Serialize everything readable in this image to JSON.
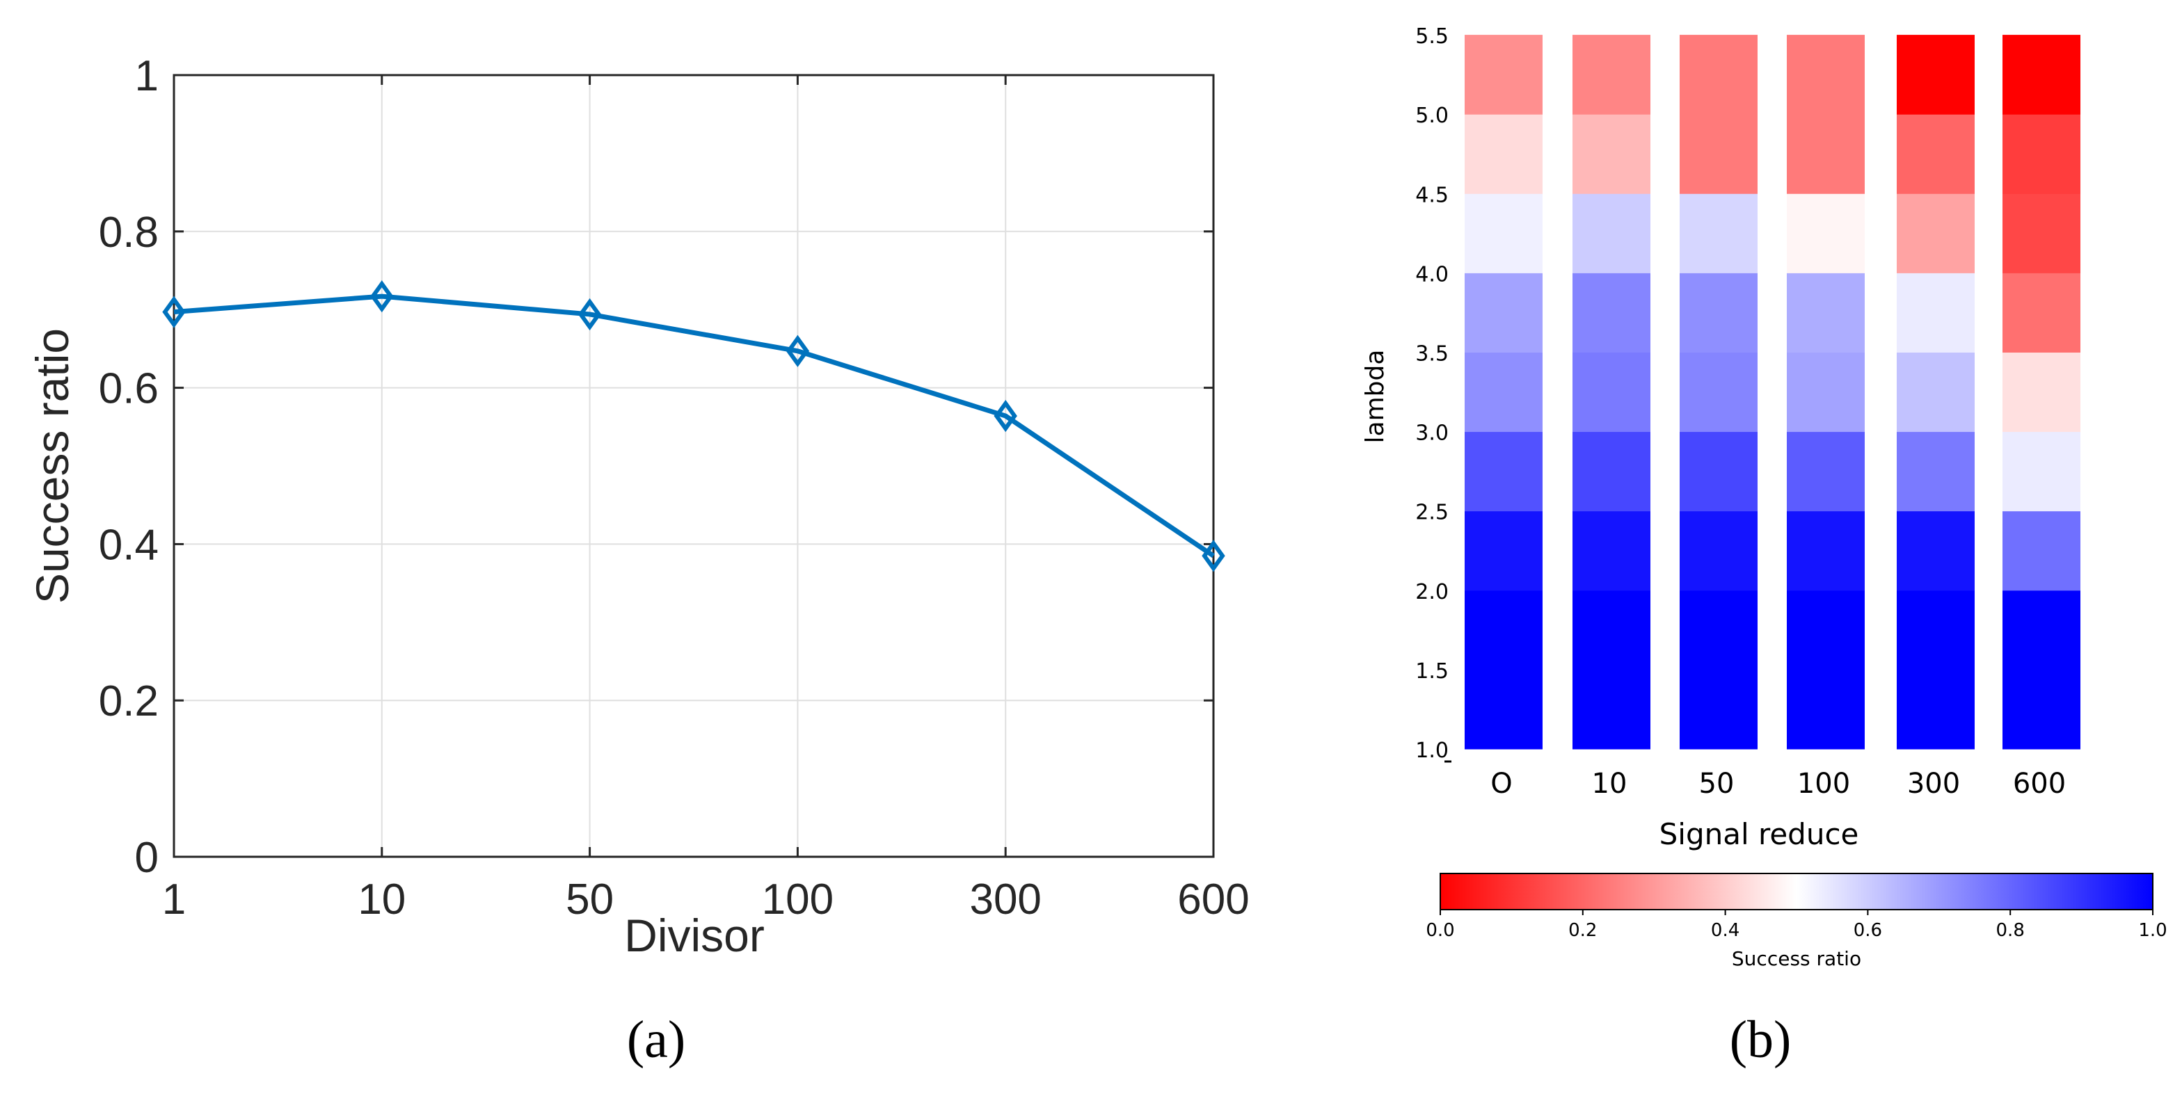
{
  "panel_a": {
    "caption": "(a)",
    "chart_data": {
      "type": "line",
      "categories": [
        "1",
        "10",
        "50",
        "100",
        "300",
        "600"
      ],
      "series": [
        {
          "values": [
            0.697,
            0.717,
            0.694,
            0.647,
            0.564,
            0.385
          ]
        }
      ],
      "title": "",
      "xlabel": "Divisor",
      "ylabel": "Success ratio",
      "ylim": [
        0,
        1
      ],
      "yticks": [
        "0",
        "0.2",
        "0.4",
        "0.6",
        "0.8",
        "1"
      ],
      "grid": true,
      "marker": "diamond",
      "line_color": "#0072BD"
    }
  },
  "panel_b": {
    "caption": "(b)",
    "chart_data": {
      "type": "heatmap",
      "title": "",
      "xlabel": "Signal reduce",
      "ylabel": "lambda",
      "x_categories": [
        "O",
        "10",
        "50",
        "100",
        "300",
        "600"
      ],
      "y_tick_labels": [
        "1.0",
        "1.5",
        "2.0",
        "2.5",
        "3.0",
        "3.5",
        "4.0",
        "4.5",
        "5.0",
        "5.5"
      ],
      "bands_bottom_to_top": [
        "1.0-2.0",
        "2.0-2.5",
        "2.5-3.0",
        "3.0-3.5",
        "3.5-4.0",
        "4.0-4.5",
        "4.5-5.0",
        "5.0-5.5"
      ],
      "columns": [
        {
          "x": "O",
          "values": [
            1.0,
            0.96,
            0.84,
            0.72,
            0.68,
            0.53,
            0.43,
            0.28
          ]
        },
        {
          "x": "10",
          "values": [
            1.0,
            0.96,
            0.86,
            0.76,
            0.74,
            0.6,
            0.36,
            0.26
          ]
        },
        {
          "x": "50",
          "values": [
            1.0,
            0.96,
            0.86,
            0.74,
            0.72,
            0.58,
            0.24,
            0.24
          ]
        },
        {
          "x": "100",
          "values": [
            1.0,
            0.96,
            0.82,
            0.68,
            0.66,
            0.48,
            0.24,
            0.24
          ]
        },
        {
          "x": "300",
          "values": [
            1.0,
            0.96,
            0.76,
            0.62,
            0.54,
            0.32,
            0.2,
            0.0
          ]
        },
        {
          "x": "600",
          "values": [
            1.0,
            0.78,
            0.54,
            0.44,
            0.22,
            0.14,
            0.12,
            0.0
          ]
        }
      ],
      "colorbar": {
        "label": "Success ratio",
        "ticks": [
          "0.0",
          "0.2",
          "0.4",
          "0.6",
          "0.8",
          "1.0"
        ],
        "range": [
          0,
          1
        ],
        "colormap": "bwr_r",
        "low_color": "#ff0000",
        "mid_color": "#ffffff",
        "high_color": "#0000ff"
      }
    }
  }
}
